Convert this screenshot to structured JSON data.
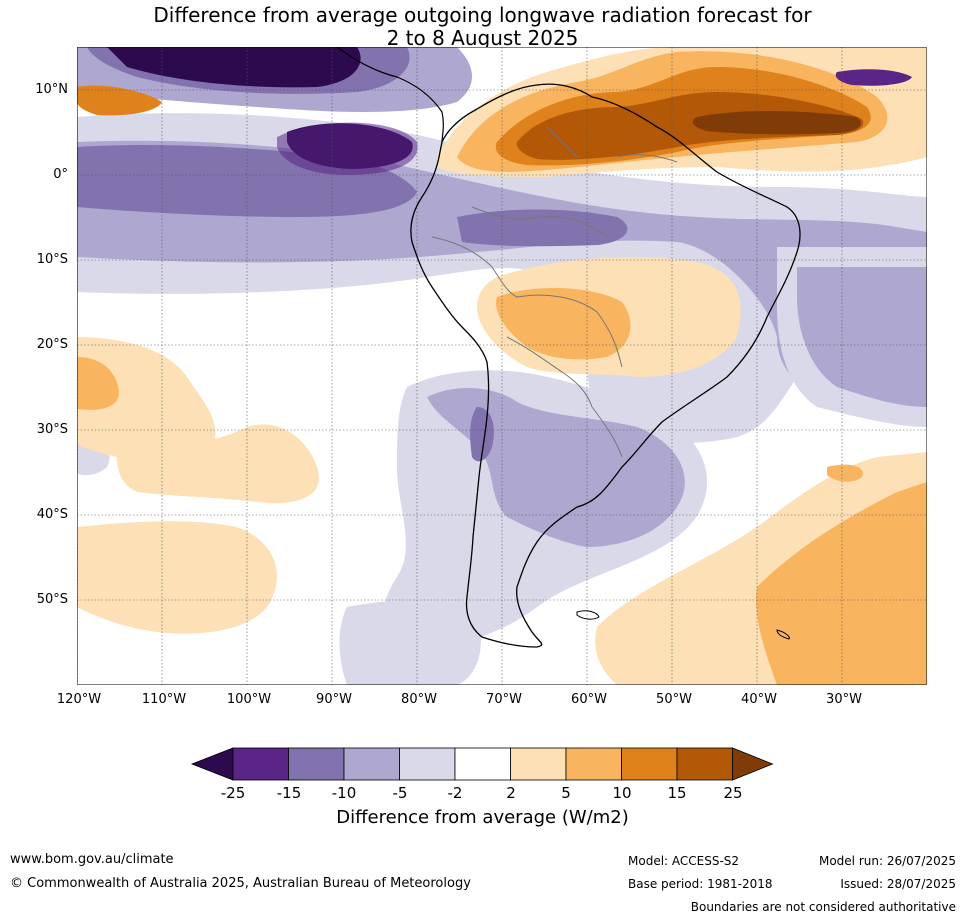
{
  "title_line1": "Difference from average outgoing longwave radiation forecast for",
  "title_line2": "2 to 8 August 2025",
  "lat_labels": [
    "10°N",
    "0°",
    "10°S",
    "20°S",
    "30°S",
    "40°S",
    "50°S"
  ],
  "lon_labels": [
    "120°W",
    "110°W",
    "100°W",
    "90°W",
    "80°W",
    "70°W",
    "60°W",
    "50°W",
    "40°W",
    "30°W"
  ],
  "legend": {
    "ticks": [
      "-25",
      "-15",
      "-10",
      "-5",
      "-2",
      "2",
      "5",
      "10",
      "15",
      "25"
    ],
    "colors": [
      "#2d0a4e",
      "#5a2587",
      "#8272ae",
      "#aea7cf",
      "#d9d9ea",
      "#ffffff",
      "#fde0b5",
      "#f9b45f",
      "#e0821c",
      "#b35806",
      "#7f3b08"
    ],
    "label": "Difference from average (W/m2)"
  },
  "footer": {
    "url": "www.bom.gov.au/climate",
    "copyright": "© Commonwealth of Australia 2025, Australian Bureau of Meteorology",
    "model": "Model: ACCESS-S2",
    "base_period": "Base period: 1981-2018",
    "model_run": "Model run: 26/07/2025",
    "issued": "Issued: 28/07/2025",
    "disclaimer": "Boundaries are not considered authoritative"
  }
}
